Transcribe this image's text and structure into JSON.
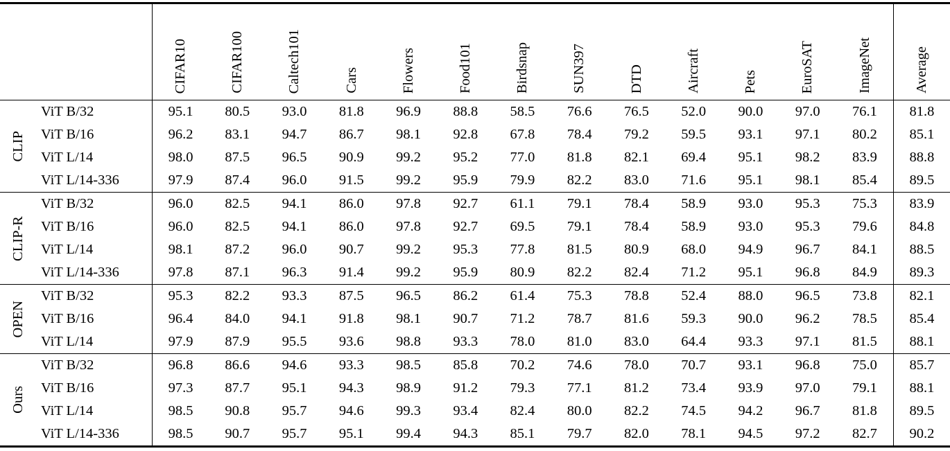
{
  "table": {
    "header": {
      "columns": [
        "CIFAR10",
        "CIFAR100",
        "Caltech101",
        "Cars",
        "Flowers",
        "Food101",
        "Birdsnap",
        "SUN397",
        "DTD",
        "Aircraft",
        "Pets",
        "EuroSAT",
        "ImageNet"
      ],
      "average": "Average"
    },
    "groups": [
      {
        "label": "CLIP",
        "rows": [
          {
            "model": "ViT B/32",
            "values": [
              "95.1",
              "80.5",
              "93.0",
              "81.8",
              "96.9",
              "88.8",
              "58.5",
              "76.6",
              "76.5",
              "52.0",
              "90.0",
              "97.0",
              "76.1"
            ],
            "average": "81.8"
          },
          {
            "model": "ViT B/16",
            "values": [
              "96.2",
              "83.1",
              "94.7",
              "86.7",
              "98.1",
              "92.8",
              "67.8",
              "78.4",
              "79.2",
              "59.5",
              "93.1",
              "97.1",
              "80.2"
            ],
            "average": "85.1"
          },
          {
            "model": "ViT L/14",
            "values": [
              "98.0",
              "87.5",
              "96.5",
              "90.9",
              "99.2",
              "95.2",
              "77.0",
              "81.8",
              "82.1",
              "69.4",
              "95.1",
              "98.2",
              "83.9"
            ],
            "average": "88.8"
          },
          {
            "model": "ViT L/14-336",
            "values": [
              "97.9",
              "87.4",
              "96.0",
              "91.5",
              "99.2",
              "95.9",
              "79.9",
              "82.2",
              "83.0",
              "71.6",
              "95.1",
              "98.1",
              "85.4"
            ],
            "average": "89.5"
          }
        ]
      },
      {
        "label": "CLIP-R",
        "rows": [
          {
            "model": "ViT B/32",
            "values": [
              "96.0",
              "82.5",
              "94.1",
              "86.0",
              "97.8",
              "92.7",
              "61.1",
              "79.1",
              "78.4",
              "58.9",
              "93.0",
              "95.3",
              "75.3"
            ],
            "average": "83.9"
          },
          {
            "model": "ViT B/16",
            "values": [
              "96.0",
              "82.5",
              "94.1",
              "86.0",
              "97.8",
              "92.7",
              "69.5",
              "79.1",
              "78.4",
              "58.9",
              "93.0",
              "95.3",
              "79.6"
            ],
            "average": "84.8"
          },
          {
            "model": "ViT L/14",
            "values": [
              "98.1",
              "87.2",
              "96.0",
              "90.7",
              "99.2",
              "95.3",
              "77.8",
              "81.5",
              "80.9",
              "68.0",
              "94.9",
              "96.7",
              "84.1"
            ],
            "average": "88.5"
          },
          {
            "model": "ViT L/14-336",
            "values": [
              "97.8",
              "87.1",
              "96.3",
              "91.4",
              "99.2",
              "95.9",
              "80.9",
              "82.2",
              "82.4",
              "71.2",
              "95.1",
              "96.8",
              "84.9"
            ],
            "average": "89.3"
          }
        ]
      },
      {
        "label": "OPEN",
        "rows": [
          {
            "model": "ViT B/32",
            "values": [
              "95.3",
              "82.2",
              "93.3",
              "87.5",
              "96.5",
              "86.2",
              "61.4",
              "75.3",
              "78.8",
              "52.4",
              "88.0",
              "96.5",
              "73.8"
            ],
            "average": "82.1"
          },
          {
            "model": "ViT B/16",
            "values": [
              "96.4",
              "84.0",
              "94.1",
              "91.8",
              "98.1",
              "90.7",
              "71.2",
              "78.7",
              "81.6",
              "59.3",
              "90.0",
              "96.2",
              "78.5"
            ],
            "average": "85.4"
          },
          {
            "model": "ViT L/14",
            "values": [
              "97.9",
              "87.9",
              "95.5",
              "93.6",
              "98.8",
              "93.3",
              "78.0",
              "81.0",
              "83.0",
              "64.4",
              "93.3",
              "97.1",
              "81.5"
            ],
            "average": "88.1"
          }
        ]
      },
      {
        "label": "Ours",
        "rows": [
          {
            "model": "ViT B/32",
            "values": [
              "96.8",
              "86.6",
              "94.6",
              "93.3",
              "98.5",
              "85.8",
              "70.2",
              "74.6",
              "78.0",
              "70.7",
              "93.1",
              "96.8",
              "75.0"
            ],
            "average": "85.7"
          },
          {
            "model": "ViT B/16",
            "values": [
              "97.3",
              "87.7",
              "95.1",
              "94.3",
              "98.9",
              "91.2",
              "79.3",
              "77.1",
              "81.2",
              "73.4",
              "93.9",
              "97.0",
              "79.1"
            ],
            "average": "88.1"
          },
          {
            "model": "ViT L/14",
            "values": [
              "98.5",
              "90.8",
              "95.7",
              "94.6",
              "99.3",
              "93.4",
              "82.4",
              "80.0",
              "82.2",
              "74.5",
              "94.2",
              "96.7",
              "81.8"
            ],
            "average": "89.5"
          },
          {
            "model": "ViT L/14-336",
            "values": [
              "98.5",
              "90.7",
              "95.7",
              "95.1",
              "99.4",
              "94.3",
              "85.1",
              "79.7",
              "82.0",
              "78.1",
              "94.5",
              "97.2",
              "82.7"
            ],
            "average": "90.2"
          }
        ]
      }
    ]
  },
  "colors": {
    "text": "#000000",
    "background": "#ffffff",
    "rule": "#000000"
  }
}
